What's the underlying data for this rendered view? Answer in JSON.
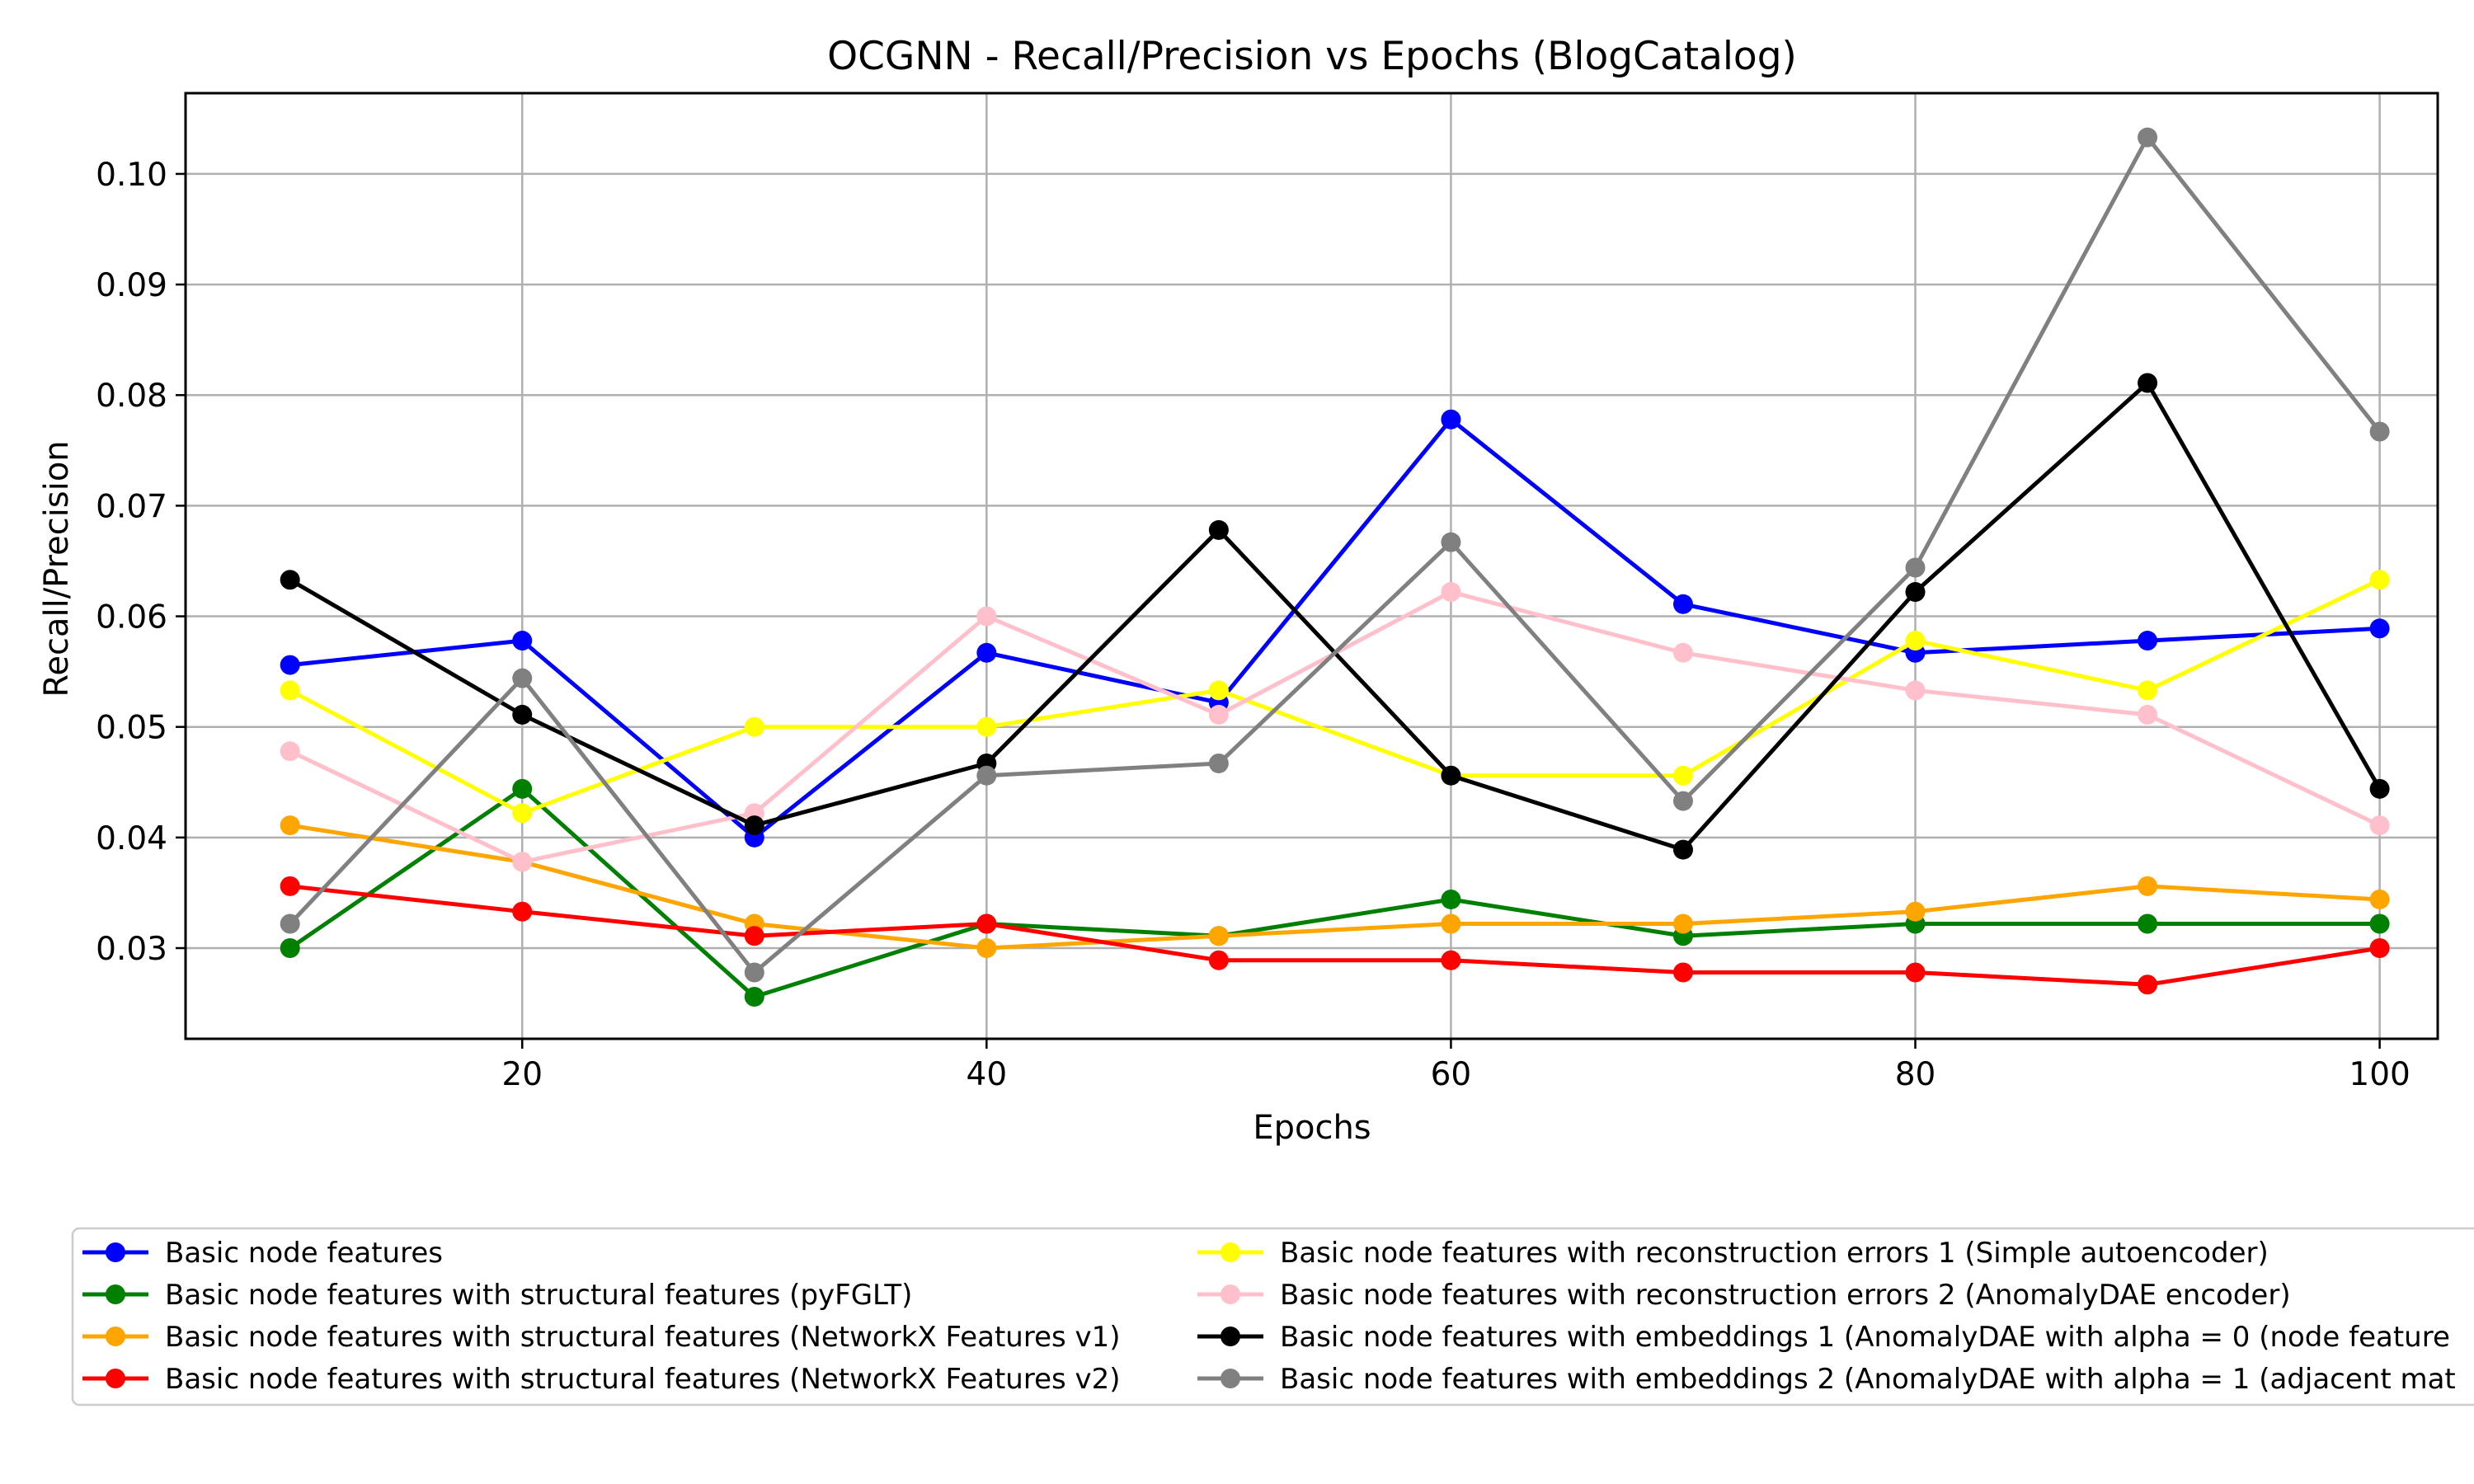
{
  "chart_data": {
    "type": "line",
    "title": "OCGNN - Recall/Precision vs Epochs (BlogCatalog)",
    "xlabel": "Epochs",
    "ylabel": "Recall/Precision",
    "xlim": [
      5.5,
      102.5
    ],
    "ylim": [
      0.0218,
      0.1073
    ],
    "x_ticks": [
      20,
      40,
      60,
      80,
      100
    ],
    "y_ticks": [
      0.03,
      0.04,
      0.05,
      0.06,
      0.07,
      0.08,
      0.09,
      0.1
    ],
    "x_tick_labels": [
      "20",
      "40",
      "60",
      "80",
      "100"
    ],
    "y_tick_labels": [
      "0.03",
      "0.04",
      "0.05",
      "0.06",
      "0.07",
      "0.08",
      "0.09",
      "0.10"
    ],
    "grid": true,
    "legend_position": "bottom",
    "x": [
      10,
      20,
      30,
      40,
      50,
      60,
      70,
      80,
      90,
      100
    ],
    "series": [
      {
        "name": "Basic node features",
        "color": "#0000ff",
        "values": [
          0.0556,
          0.0578,
          0.04,
          0.0567,
          0.0522,
          0.0778,
          0.0611,
          0.0567,
          0.0578,
          0.0589
        ]
      },
      {
        "name": "Basic node features with structural features (pyFGLT)",
        "color": "#008000",
        "values": [
          0.03,
          0.0444,
          0.0256,
          0.0322,
          0.0311,
          0.0344,
          0.0311,
          0.0322,
          0.0322,
          0.0322
        ]
      },
      {
        "name": "Basic node features with structural features (NetworkX Features v1)",
        "color": "#ffa500",
        "values": [
          0.0411,
          0.0378,
          0.0322,
          0.03,
          0.0311,
          0.0322,
          0.0322,
          0.0333,
          0.0356,
          0.0344
        ]
      },
      {
        "name": "Basic node features with structural features (NetworkX Features v2)",
        "color": "#ff0000",
        "values": [
          0.0356,
          0.0333,
          0.0311,
          0.0322,
          0.0289,
          0.0289,
          0.0278,
          0.0278,
          0.0267,
          0.03
        ]
      },
      {
        "name": "Basic node features with reconstruction errors 1 (Simple autoencoder)",
        "color": "#ffff00",
        "values": [
          0.0533,
          0.0422,
          0.05,
          0.05,
          0.0533,
          0.0456,
          0.0456,
          0.0578,
          0.0533,
          0.0633
        ]
      },
      {
        "name": "Basic node features with reconstruction errors 2 (AnomalyDAE encoder)",
        "color": "#ffc0cb",
        "values": [
          0.0478,
          0.0378,
          0.0422,
          0.06,
          0.0511,
          0.0622,
          0.0567,
          0.0533,
          0.0511,
          0.0411
        ]
      },
      {
        "name": "Basic node features with embeddings 1 (AnomalyDAE with alpha = 0 (node feature",
        "color": "#000000",
        "values": [
          0.0633,
          0.0511,
          0.0411,
          0.0467,
          0.0678,
          0.0456,
          0.0389,
          0.0622,
          0.0811,
          0.0444
        ]
      },
      {
        "name": "Basic node features with embeddings 2 (AnomalyDAE with alpha = 1 (adjacent mat",
        "color": "#808080",
        "values": [
          0.0322,
          0.0544,
          0.0278,
          0.0456,
          0.0467,
          0.0667,
          0.0433,
          0.0644,
          0.1033,
          0.0767
        ]
      }
    ]
  }
}
